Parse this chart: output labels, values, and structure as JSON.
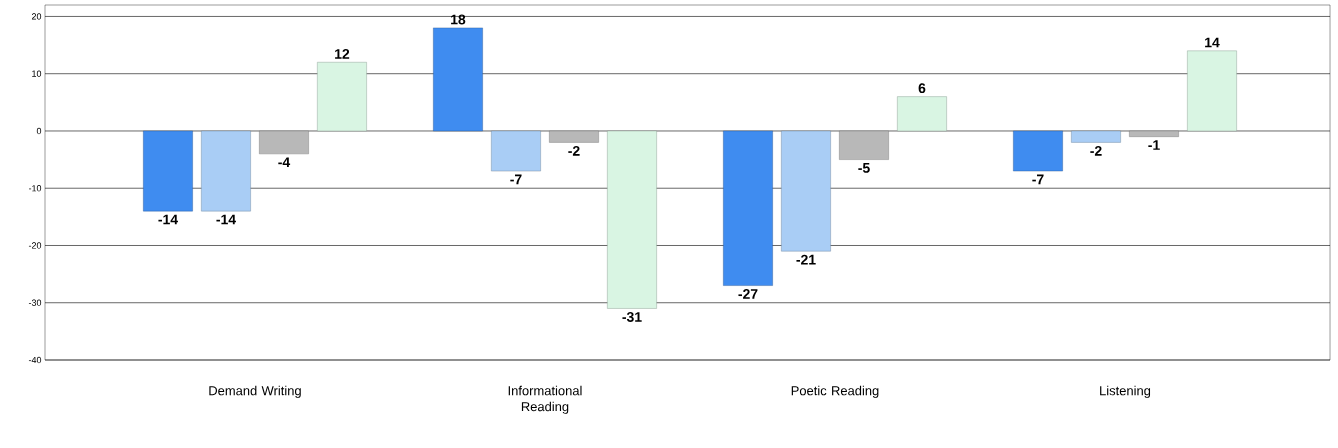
{
  "chart_data": {
    "type": "bar",
    "categories": [
      "Demand Writing",
      "Informational Reading",
      "Poetic Reading",
      "Listening"
    ],
    "series": [
      {
        "color": "#3f8cf0",
        "values": [
          -14,
          18,
          -27,
          -7
        ]
      },
      {
        "color": "#a9cdf5",
        "values": [
          -14,
          -7,
          -21,
          -2
        ]
      },
      {
        "color": "#b8b8b8",
        "values": [
          -4,
          -2,
          -5,
          -1
        ]
      },
      {
        "color": "#d9f5e3",
        "values": [
          12,
          -31,
          6,
          14
        ]
      }
    ],
    "ylim": [
      -40,
      22
    ],
    "yticks": [
      -40,
      -30,
      -20,
      -10,
      0,
      10,
      20
    ],
    "grid": "y",
    "data_labels": true
  }
}
